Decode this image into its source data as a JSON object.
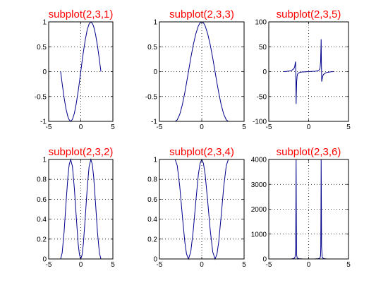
{
  "chart_data": [
    {
      "type": "line",
      "title": "subplot(2,3,1)",
      "xlim": [
        -5,
        5
      ],
      "ylim": [
        -1,
        1
      ],
      "xticks": [
        -5,
        0,
        5
      ],
      "yticks": [
        -1,
        -0.5,
        0,
        0.5,
        1
      ],
      "xticklabels": [
        "-5",
        "0",
        "5"
      ],
      "yticklabels": [
        "-1",
        "-0.5",
        "0",
        "0.5",
        "1"
      ],
      "grid": true,
      "color": "#00008b",
      "series": [
        {
          "x": [
            -3.14,
            -2.9,
            -2.6,
            -2.3,
            -2.0,
            -1.8,
            -1.57,
            -1.3,
            -1.0,
            -0.7,
            -0.4,
            -0.2,
            0,
            0.2,
            0.4,
            0.7,
            1.0,
            1.3,
            1.57,
            1.8,
            2.0,
            2.3,
            2.6,
            2.9,
            3.14
          ],
          "y": [
            0,
            -0.24,
            -0.52,
            -0.75,
            -0.91,
            -0.97,
            -1,
            -0.96,
            -0.84,
            -0.64,
            -0.39,
            -0.2,
            0,
            0.2,
            0.39,
            0.64,
            0.84,
            0.96,
            1,
            0.97,
            0.91,
            0.75,
            0.52,
            0.24,
            0
          ]
        }
      ]
    },
    {
      "type": "line",
      "title": "subplot(2,3,3)",
      "xlim": [
        -5,
        5
      ],
      "ylim": [
        -1,
        1
      ],
      "xticks": [
        -5,
        0,
        5
      ],
      "yticks": [
        -1,
        -0.5,
        0,
        0.5,
        1
      ],
      "xticklabels": [
        "-5",
        "0",
        "5"
      ],
      "yticklabels": [
        "-1",
        "-0.5",
        "0",
        "0.5",
        "1"
      ],
      "grid": true,
      "color": "#00008b",
      "series": [
        {
          "x": [
            -3.14,
            -2.9,
            -2.6,
            -2.3,
            -2.0,
            -1.8,
            -1.57,
            -1.3,
            -1.0,
            -0.7,
            -0.4,
            -0.2,
            0,
            0.2,
            0.4,
            0.7,
            1.0,
            1.3,
            1.57,
            1.8,
            2.0,
            2.3,
            2.6,
            2.9,
            3.14
          ],
          "y": [
            -1,
            -0.97,
            -0.86,
            -0.67,
            -0.42,
            -0.23,
            0,
            0.27,
            0.54,
            0.76,
            0.92,
            0.98,
            1,
            0.98,
            0.92,
            0.76,
            0.54,
            0.27,
            0,
            -0.23,
            -0.42,
            -0.67,
            -0.86,
            -0.97,
            -1
          ]
        }
      ]
    },
    {
      "type": "line",
      "title": "subplot(2,3,5)",
      "xlim": [
        -5,
        5
      ],
      "ylim": [
        -100,
        100
      ],
      "xticks": [
        -5,
        0,
        5
      ],
      "yticks": [
        -100,
        -50,
        0,
        50,
        100
      ],
      "xticklabels": [
        "-5",
        "0",
        "5"
      ],
      "yticklabels": [
        "-100",
        "-50",
        "0",
        "50",
        "100"
      ],
      "grid": true,
      "color": "#00008b",
      "series": [
        {
          "x": [
            -3.14,
            -2.8,
            -2.5,
            -2.2,
            -2.0,
            -1.85,
            -1.75,
            -1.7,
            -1.64,
            -1.6,
            -1.57,
            -1.55,
            -1.5,
            -1.45,
            -1.4,
            -1.3,
            -1.1,
            -0.8,
            -0.5,
            -0.2,
            0,
            0.2,
            0.5,
            0.8,
            1.1,
            1.3,
            1.4,
            1.45,
            1.5,
            1.55,
            1.57,
            1.6,
            1.64,
            1.7,
            1.75,
            1.85,
            2.0,
            2.2,
            2.5,
            2.8,
            3.14
          ],
          "y": [
            0,
            0.3,
            1,
            2,
            4,
            6,
            10,
            15,
            20,
            -20,
            -65,
            -50,
            -20,
            -10,
            -5,
            -3,
            -1.5,
            -0.8,
            -0.5,
            -0.2,
            0,
            0.2,
            0.5,
            0.8,
            1.5,
            3,
            5,
            10,
            20,
            50,
            65,
            20,
            -20,
            -15,
            -10,
            -6,
            -4,
            -2,
            -1,
            -0.3,
            0
          ]
        }
      ]
    },
    {
      "type": "line",
      "title": "subplot(2,3,2)",
      "xlim": [
        -5,
        5
      ],
      "ylim": [
        0,
        1
      ],
      "xticks": [
        -5,
        0,
        5
      ],
      "yticks": [
        0,
        0.2,
        0.4,
        0.6,
        0.8,
        1
      ],
      "xticklabels": [
        "-5",
        "0",
        "5"
      ],
      "yticklabels": [
        "0",
        "0.2",
        "0.4",
        "0.6",
        "0.8",
        "1"
      ],
      "grid": true,
      "color": "#00008b",
      "series": [
        {
          "x": [
            -3.14,
            -2.9,
            -2.6,
            -2.3,
            -2.0,
            -1.8,
            -1.57,
            -1.3,
            -1.0,
            -0.7,
            -0.4,
            -0.2,
            0,
            0.2,
            0.4,
            0.7,
            1.0,
            1.3,
            1.57,
            1.8,
            2.0,
            2.3,
            2.6,
            2.9,
            3.14
          ],
          "y": [
            0,
            0.06,
            0.27,
            0.56,
            0.83,
            0.95,
            1,
            0.93,
            0.71,
            0.42,
            0.15,
            0.04,
            0,
            0.04,
            0.15,
            0.42,
            0.71,
            0.93,
            1,
            0.95,
            0.83,
            0.56,
            0.27,
            0.06,
            0
          ]
        }
      ]
    },
    {
      "type": "line",
      "title": "subplot(2,3,4)",
      "xlim": [
        -5,
        5
      ],
      "ylim": [
        0,
        1
      ],
      "xticks": [
        -5,
        0,
        5
      ],
      "yticks": [
        0,
        0.2,
        0.4,
        0.6,
        0.8,
        1
      ],
      "xticklabels": [
        "-5",
        "0",
        "5"
      ],
      "yticklabels": [
        "0",
        "0.2",
        "0.4",
        "0.6",
        "0.8",
        "1"
      ],
      "grid": true,
      "color": "#00008b",
      "series": [
        {
          "x": [
            -3.14,
            -2.9,
            -2.6,
            -2.3,
            -2.0,
            -1.8,
            -1.57,
            -1.3,
            -1.0,
            -0.7,
            -0.4,
            -0.2,
            0,
            0.2,
            0.4,
            0.7,
            1.0,
            1.3,
            1.57,
            1.8,
            2.0,
            2.3,
            2.6,
            2.9,
            3.14
          ],
          "y": [
            1,
            0.94,
            0.73,
            0.44,
            0.17,
            0.05,
            0,
            0.07,
            0.29,
            0.58,
            0.85,
            0.96,
            1,
            0.96,
            0.85,
            0.58,
            0.29,
            0.07,
            0,
            0.05,
            0.17,
            0.44,
            0.73,
            0.94,
            1
          ]
        }
      ]
    },
    {
      "type": "line",
      "title": "subplot(2,3,6)",
      "xlim": [
        -5,
        5
      ],
      "ylim": [
        0,
        4000
      ],
      "xticks": [
        -5,
        0,
        5
      ],
      "yticks": [
        0,
        1000,
        2000,
        3000,
        4000
      ],
      "xticklabels": [
        "-5",
        "0",
        "5"
      ],
      "yticklabels": [
        "0",
        "1000",
        "2000",
        "3000",
        "4000"
      ],
      "grid": true,
      "color": "#00008b",
      "series": [
        {
          "x": [
            -3.14,
            -2.6,
            -2.2,
            -2.0,
            -1.8,
            -1.7,
            -1.62,
            -1.6,
            -1.57,
            -1.55,
            -1.52,
            -1.5,
            -1.45,
            -1.4,
            -1.2,
            -0.8,
            -0.4,
            0,
            0.4,
            0.8,
            1.2,
            1.4,
            1.45,
            1.5,
            1.52,
            1.55,
            1.57,
            1.6,
            1.62,
            1.7,
            1.8,
            2.0,
            2.2,
            2.6,
            3.14
          ],
          "y": [
            0,
            1,
            4,
            10,
            30,
            80,
            500,
            2150,
            4000,
            2150,
            500,
            150,
            60,
            30,
            10,
            3,
            1,
            0,
            1,
            3,
            10,
            30,
            60,
            150,
            500,
            2150,
            4000,
            2150,
            500,
            80,
            30,
            10,
            4,
            1,
            0
          ]
        }
      ]
    }
  ]
}
